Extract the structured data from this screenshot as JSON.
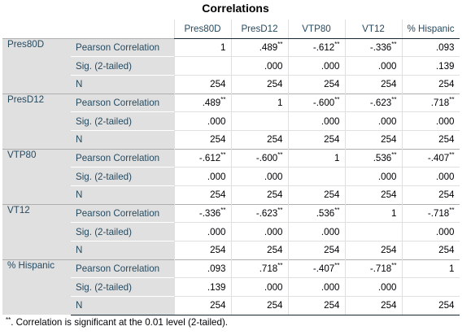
{
  "title": "Correlations",
  "columns": [
    "Pres80D",
    "PresD12",
    "VTP80",
    "VT12",
    "% Hispanic"
  ],
  "stat_labels": [
    "Pearson Correlation",
    "Sig. (2-tailed)",
    "N"
  ],
  "rows": [
    {
      "variable": "Pres80D",
      "pearson": [
        [
          "1",
          ""
        ],
        [
          ".489",
          "**"
        ],
        [
          "-.612",
          "**"
        ],
        [
          "-.336",
          "**"
        ],
        [
          ".093",
          ""
        ]
      ],
      "sig": [
        "",
        ".000",
        ".000",
        ".000",
        ".139"
      ],
      "n": [
        "254",
        "254",
        "254",
        "254",
        "254"
      ]
    },
    {
      "variable": "PresD12",
      "pearson": [
        [
          ".489",
          "**"
        ],
        [
          "1",
          ""
        ],
        [
          "-.600",
          "**"
        ],
        [
          "-.623",
          "**"
        ],
        [
          ".718",
          "**"
        ]
      ],
      "sig": [
        ".000",
        "",
        ".000",
        ".000",
        ".000"
      ],
      "n": [
        "254",
        "254",
        "254",
        "254",
        "254"
      ]
    },
    {
      "variable": "VTP80",
      "pearson": [
        [
          "-.612",
          "**"
        ],
        [
          "-.600",
          "**"
        ],
        [
          "1",
          ""
        ],
        [
          ".536",
          "**"
        ],
        [
          "-.407",
          "**"
        ]
      ],
      "sig": [
        ".000",
        ".000",
        "",
        ".000",
        ".000"
      ],
      "n": [
        "254",
        "254",
        "254",
        "254",
        "254"
      ]
    },
    {
      "variable": "VT12",
      "pearson": [
        [
          "-.336",
          "**"
        ],
        [
          "-.623",
          "**"
        ],
        [
          ".536",
          "**"
        ],
        [
          "1",
          ""
        ],
        [
          "-.718",
          "**"
        ]
      ],
      "sig": [
        ".000",
        ".000",
        ".000",
        "",
        ".000"
      ],
      "n": [
        "254",
        "254",
        "254",
        "254",
        "254"
      ]
    },
    {
      "variable": "% Hispanic",
      "pearson": [
        [
          ".093",
          ""
        ],
        [
          ".718",
          "**"
        ],
        [
          "-.407",
          "**"
        ],
        [
          "-.718",
          "**"
        ],
        [
          "1",
          ""
        ]
      ],
      "sig": [
        ".139",
        ".000",
        ".000",
        ".000",
        ""
      ],
      "n": [
        "254",
        "254",
        "254",
        "254",
        "254"
      ]
    }
  ],
  "footnote": {
    "marker": "**",
    "text": ". Correlation is significant at the 0.01 level (2-tailed)."
  },
  "colors": {
    "label_text": "#264a60",
    "label_bg": "#e0e0e0",
    "value_text": "#010205"
  }
}
